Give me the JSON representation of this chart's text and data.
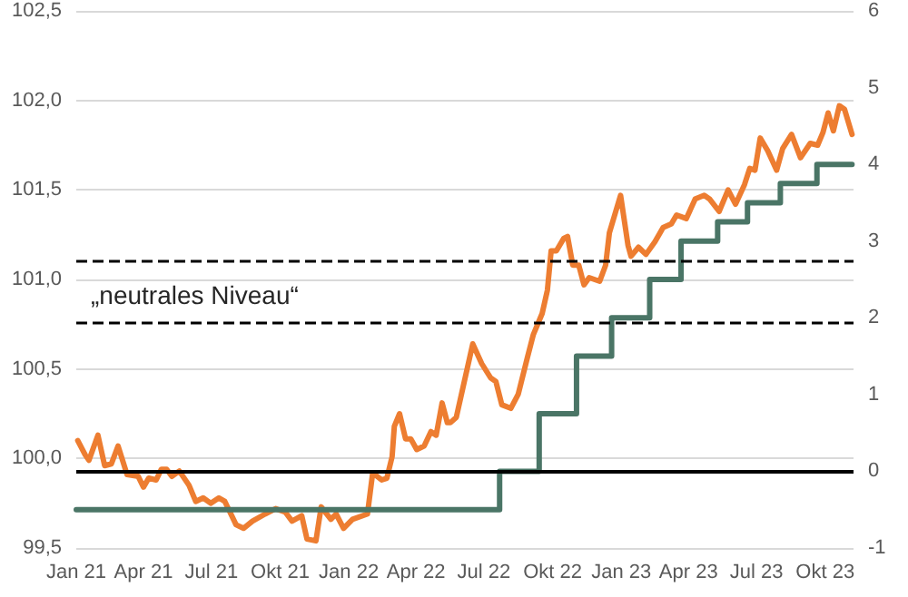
{
  "chart_data": {
    "type": "line",
    "series": [
      {
        "type": "line",
        "color": "#ed7d31",
        "x": [
          "2021-01-03",
          "2021-01-13",
          "2021-01-18",
          "2021-01-30",
          "2021-02-08",
          "2021-02-17",
          "2021-02-26",
          "2021-03-10",
          "2021-03-25",
          "2021-04-01",
          "2021-04-08",
          "2021-04-18",
          "2021-04-25",
          "2021-05-02",
          "2021-05-09",
          "2021-05-19",
          "2021-06-01",
          "2021-06-10",
          "2021-06-20",
          "2021-06-30",
          "2021-07-11",
          "2021-07-19",
          "2021-08-03",
          "2021-08-13",
          "2021-08-25",
          "2021-09-11",
          "2021-09-25",
          "2021-10-08",
          "2021-10-17",
          "2021-10-30",
          "2021-11-06",
          "2021-11-18",
          "2021-11-25",
          "2021-12-08",
          "2021-12-15",
          "2021-12-25",
          "2022-01-06",
          "2022-01-26",
          "2022-02-02",
          "2022-02-14",
          "2022-02-21",
          "2022-02-28",
          "2022-03-03",
          "2022-03-10",
          "2022-03-18",
          "2022-03-25",
          "2022-04-02",
          "2022-04-12",
          "2022-04-21",
          "2022-04-28",
          "2022-05-06",
          "2022-05-13",
          "2022-05-17",
          "2022-05-25",
          "2022-06-16",
          "2022-06-28",
          "2022-07-10",
          "2022-07-17",
          "2022-07-25",
          "2022-08-06",
          "2022-08-16",
          "2022-08-28",
          "2022-09-05",
          "2022-09-17",
          "2022-09-24",
          "2022-09-29",
          "2022-10-06",
          "2022-10-16",
          "2022-10-21",
          "2022-10-28",
          "2022-11-05",
          "2022-11-12",
          "2022-11-19",
          "2022-12-03",
          "2022-12-11",
          "2022-12-16",
          "2022-12-31",
          "2023-01-10",
          "2023-01-14",
          "2023-01-24",
          "2023-02-03",
          "2023-02-15",
          "2023-02-26",
          "2023-03-09",
          "2023-03-16",
          "2023-03-29",
          "2023-04-10",
          "2023-04-22",
          "2023-04-29",
          "2023-05-12",
          "2023-05-24",
          "2023-06-03",
          "2023-06-15",
          "2023-06-22",
          "2023-06-29",
          "2023-07-06",
          "2023-07-16",
          "2023-07-28",
          "2023-08-05",
          "2023-08-17",
          "2023-08-29",
          "2023-09-11",
          "2023-09-21",
          "2023-09-28",
          "2023-10-05",
          "2023-10-12",
          "2023-10-20",
          "2023-10-27",
          "2023-11-06"
        ],
        "values": [
          100.1,
          100.02,
          99.99,
          100.13,
          99.96,
          99.97,
          100.07,
          99.91,
          99.9,
          99.84,
          99.89,
          99.88,
          99.94,
          99.94,
          99.9,
          99.93,
          99.85,
          99.76,
          99.78,
          99.75,
          99.78,
          99.76,
          99.63,
          99.61,
          99.65,
          99.69,
          99.72,
          99.7,
          99.65,
          99.68,
          99.55,
          99.54,
          99.73,
          99.66,
          99.69,
          99.61,
          99.66,
          99.69,
          99.92,
          99.88,
          99.89,
          100.01,
          100.18,
          100.25,
          100.11,
          100.11,
          100.05,
          100.07,
          100.15,
          100.13,
          100.31,
          100.2,
          100.2,
          100.23,
          100.64,
          100.53,
          100.45,
          100.43,
          100.3,
          100.28,
          100.36,
          100.56,
          100.69,
          100.81,
          100.94,
          101.16,
          101.16,
          101.23,
          101.24,
          101.08,
          101.08,
          100.97,
          101.01,
          100.99,
          101.08,
          101.26,
          101.47,
          101.19,
          101.13,
          101.18,
          101.14,
          101.21,
          101.29,
          101.31,
          101.36,
          101.34,
          101.45,
          101.47,
          101.45,
          101.38,
          101.5,
          101.42,
          101.53,
          101.62,
          101.61,
          101.79,
          101.72,
          101.61,
          101.73,
          101.81,
          101.68,
          101.76,
          101.75,
          101.82,
          101.93,
          101.83,
          101.97,
          101.95,
          101.81
        ]
      },
      {
        "type": "step",
        "axis": "y2",
        "color": "#4a7566",
        "x": [
          "2021-01-01",
          "2022-07-22",
          "2022-09-13",
          "2022-11-02",
          "2022-12-19",
          "2023-02-08",
          "2023-03-22",
          "2023-05-10",
          "2023-06-19",
          "2023-08-02",
          "2023-09-20",
          "2023-11-06"
        ],
        "values": [
          -0.5,
          0,
          0.75,
          1.5,
          2.0,
          2.5,
          3.0,
          3.25,
          3.5,
          3.75,
          4.0,
          4.0
        ]
      }
    ],
    "xlim": [
      "2021-01-01",
      "2023-11-08"
    ],
    "xticks": [
      {
        "value": "2021-01-01",
        "label": "Jan 21"
      },
      {
        "value": "2021-04-01",
        "label": "Apr 21"
      },
      {
        "value": "2021-07-01",
        "label": "Jul 21"
      },
      {
        "value": "2021-10-01",
        "label": "Okt 21"
      },
      {
        "value": "2022-01-01",
        "label": "Jan 22"
      },
      {
        "value": "2022-04-01",
        "label": "Apr 22"
      },
      {
        "value": "2022-07-01",
        "label": "Jul 22"
      },
      {
        "value": "2022-10-01",
        "label": "Okt 22"
      },
      {
        "value": "2023-01-01",
        "label": "Jan 23"
      },
      {
        "value": "2023-04-01",
        "label": "Apr 23"
      },
      {
        "value": "2023-07-01",
        "label": "Jul 23"
      },
      {
        "value": "2023-10-01",
        "label": "Okt 23"
      }
    ],
    "ylim": [
      99.5,
      102.5
    ],
    "yticks": [
      {
        "value": 99.5,
        "label": "99,5"
      },
      {
        "value": 100,
        "label": "100,0"
      },
      {
        "value": 100.5,
        "label": "100,5"
      },
      {
        "value": 101,
        "label": "101,0"
      },
      {
        "value": 101.5,
        "label": "101,5"
      },
      {
        "value": 102,
        "label": "102,0"
      },
      {
        "value": 102.5,
        "label": "102,5"
      }
    ],
    "y2lim": [
      -1,
      6
    ],
    "y2ticks": [
      -1,
      0,
      1,
      2,
      3,
      4,
      5,
      6
    ],
    "ref_lines": [
      {
        "axis": "y2",
        "value": 2.75,
        "line_style": "dashed",
        "color": "#000000"
      },
      {
        "axis": "y2",
        "value": 1.95,
        "line_style": "dashed",
        "color": "#000000",
        "label": "„neutrales Niveau“"
      },
      {
        "axis": "y2",
        "value": 0,
        "line_style": "solid",
        "color": "#000000"
      }
    ],
    "grid": "y",
    "marker": "none"
  }
}
